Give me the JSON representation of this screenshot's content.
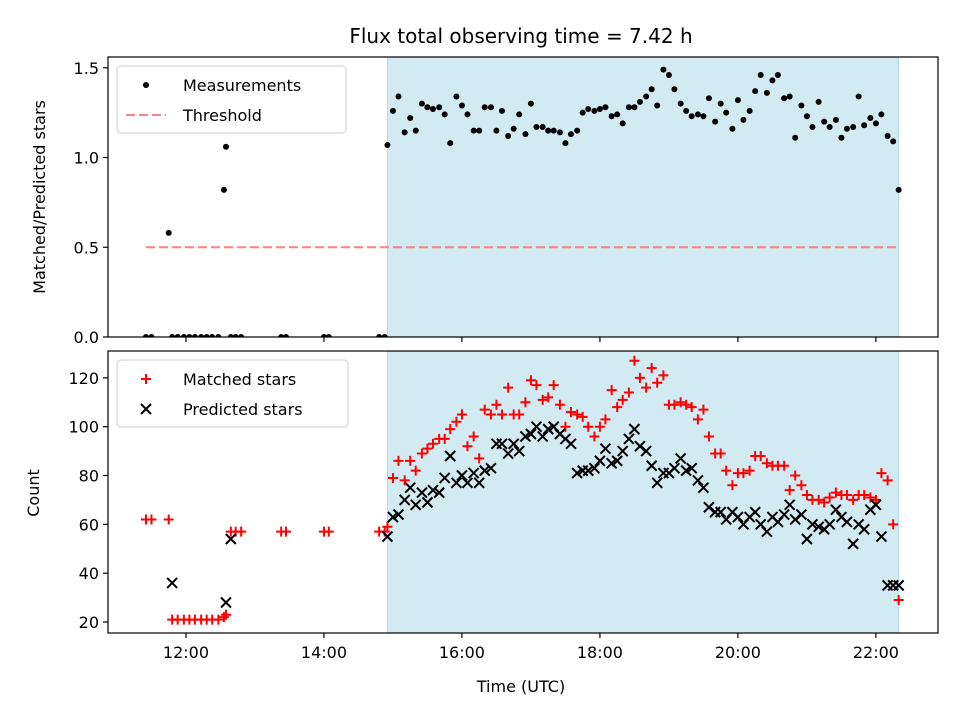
{
  "colors": {
    "observing_window": "#add8e6",
    "threshold": "#ff8080",
    "measurements": "#000000",
    "matched": "#ff0000",
    "predicted": "#000000"
  },
  "chart_data": [
    {
      "type": "scatter",
      "title": "Flux total observing time = 7.42 h",
      "ylabel": "Matched/Predicted stars",
      "xlabel": "",
      "xlim": [
        10.87,
        22.9
      ],
      "ylim": [
        0.0,
        1.56
      ],
      "y_ticks": [
        "0.0",
        "0.5",
        "1.0",
        "1.5"
      ],
      "shaded_window": [
        14.92,
        22.33
      ],
      "legend": {
        "placement": "upper-left",
        "entries": [
          "Measurements",
          "Threshold"
        ]
      },
      "series": [
        {
          "name": "Measurements",
          "marker": "dot",
          "x": [
            11.42,
            11.5,
            11.75,
            11.8,
            11.88,
            11.97,
            12.05,
            12.13,
            12.22,
            12.3,
            12.38,
            12.47,
            12.55,
            12.58,
            12.65,
            12.72,
            12.8,
            13.38,
            13.45,
            14.0,
            14.07,
            14.8,
            14.88,
            14.92,
            15.0,
            15.08,
            15.17,
            15.25,
            15.33,
            15.42,
            15.5,
            15.58,
            15.67,
            15.75,
            15.83,
            15.92,
            16.0,
            16.08,
            16.17,
            16.25,
            16.33,
            16.42,
            16.5,
            16.58,
            16.67,
            16.75,
            16.83,
            16.92,
            17.0,
            17.08,
            17.17,
            17.25,
            17.33,
            17.42,
            17.5,
            17.58,
            17.67,
            17.75,
            17.83,
            17.92,
            18.0,
            18.08,
            18.17,
            18.25,
            18.33,
            18.42,
            18.5,
            18.58,
            18.67,
            18.75,
            18.83,
            18.92,
            19.0,
            19.08,
            19.17,
            19.25,
            19.33,
            19.42,
            19.5,
            19.58,
            19.67,
            19.75,
            19.83,
            19.92,
            20.0,
            20.08,
            20.17,
            20.25,
            20.33,
            20.42,
            20.5,
            20.58,
            20.67,
            20.75,
            20.83,
            20.92,
            21.0,
            21.08,
            21.17,
            21.25,
            21.33,
            21.42,
            21.5,
            21.58,
            21.67,
            21.75,
            21.83,
            21.92,
            22.0,
            22.08,
            22.17,
            22.25,
            22.33
          ],
          "y": [
            0.0,
            0.0,
            0.58,
            0.0,
            0.0,
            0.0,
            0.0,
            0.0,
            0.0,
            0.0,
            0.0,
            0.0,
            0.82,
            1.06,
            0.0,
            0.0,
            0.0,
            0.0,
            0.0,
            0.0,
            0.0,
            0.0,
            0.0,
            1.07,
            1.26,
            1.34,
            1.14,
            1.22,
            1.15,
            1.3,
            1.28,
            1.27,
            1.28,
            1.24,
            1.08,
            1.34,
            1.29,
            1.24,
            1.15,
            1.15,
            1.28,
            1.28,
            1.15,
            1.26,
            1.12,
            1.16,
            1.24,
            1.13,
            1.3,
            1.17,
            1.17,
            1.15,
            1.15,
            1.14,
            1.08,
            1.13,
            1.15,
            1.25,
            1.27,
            1.26,
            1.27,
            1.28,
            1.23,
            1.24,
            1.19,
            1.28,
            1.28,
            1.31,
            1.34,
            1.38,
            1.29,
            1.49,
            1.46,
            1.38,
            1.3,
            1.26,
            1.23,
            1.24,
            1.23,
            1.33,
            1.2,
            1.3,
            1.25,
            1.16,
            1.32,
            1.21,
            1.26,
            1.37,
            1.46,
            1.36,
            1.43,
            1.46,
            1.33,
            1.34,
            1.11,
            1.29,
            1.23,
            1.17,
            1.31,
            1.2,
            1.17,
            1.21,
            1.11,
            1.16,
            1.17,
            1.34,
            1.18,
            1.22,
            1.19,
            1.24,
            1.12,
            1.09,
            0.82
          ]
        },
        {
          "name": "Threshold",
          "marker": "dashed-line",
          "x": [
            11.42,
            22.33
          ],
          "y": [
            0.5,
            0.5
          ]
        }
      ]
    },
    {
      "type": "scatter",
      "title": "",
      "ylabel": "Count",
      "xlabel": "Time (UTC)",
      "xlim": [
        10.87,
        22.9
      ],
      "ylim": [
        15.5,
        131
      ],
      "x_ticks": [
        {
          "value": 12,
          "label": "12:00"
        },
        {
          "value": 14,
          "label": "14:00"
        },
        {
          "value": 16,
          "label": "16:00"
        },
        {
          "value": 18,
          "label": "18:00"
        },
        {
          "value": 20,
          "label": "20:00"
        },
        {
          "value": 22,
          "label": "22:00"
        }
      ],
      "y_ticks": [
        "20",
        "40",
        "60",
        "80",
        "100",
        "120"
      ],
      "shaded_window": [
        14.92,
        22.33
      ],
      "legend": {
        "placement": "upper-left",
        "entries": [
          "Matched stars",
          "Predicted stars"
        ]
      },
      "series": [
        {
          "name": "Matched stars",
          "marker": "plus",
          "x": [
            11.42,
            11.5,
            11.75,
            11.8,
            11.88,
            11.97,
            12.05,
            12.13,
            12.22,
            12.3,
            12.38,
            12.47,
            12.55,
            12.58,
            12.65,
            12.72,
            12.8,
            13.38,
            13.45,
            14.0,
            14.07,
            14.8,
            14.88,
            14.92,
            15.0,
            15.08,
            15.17,
            15.25,
            15.33,
            15.42,
            15.5,
            15.58,
            15.67,
            15.75,
            15.83,
            15.92,
            16.0,
            16.08,
            16.17,
            16.25,
            16.33,
            16.42,
            16.5,
            16.58,
            16.67,
            16.75,
            16.83,
            16.92,
            17.0,
            17.08,
            17.17,
            17.25,
            17.33,
            17.42,
            17.5,
            17.58,
            17.67,
            17.75,
            17.83,
            17.92,
            18.0,
            18.08,
            18.17,
            18.25,
            18.33,
            18.42,
            18.5,
            18.58,
            18.67,
            18.75,
            18.83,
            18.92,
            19.0,
            19.08,
            19.17,
            19.25,
            19.33,
            19.42,
            19.5,
            19.58,
            19.67,
            19.75,
            19.83,
            19.92,
            20.0,
            20.08,
            20.17,
            20.25,
            20.33,
            20.42,
            20.5,
            20.58,
            20.67,
            20.75,
            20.83,
            20.92,
            21.0,
            21.08,
            21.17,
            21.25,
            21.33,
            21.42,
            21.5,
            21.58,
            21.67,
            21.75,
            21.83,
            21.92,
            22.0,
            22.08,
            22.17,
            22.25,
            22.33
          ],
          "y": [
            62,
            62,
            62,
            21,
            21,
            21,
            21,
            21,
            21,
            21,
            21,
            21,
            22,
            23,
            57,
            57,
            57,
            57,
            57,
            57,
            57,
            57,
            57,
            59,
            79,
            86,
            78,
            86,
            82,
            89,
            91,
            93,
            95,
            95,
            99,
            102,
            105,
            92,
            96,
            87,
            107,
            105,
            109,
            105,
            116,
            105,
            105,
            110,
            119,
            117,
            111,
            112,
            117,
            109,
            100,
            106,
            105,
            104,
            100,
            96,
            100,
            103,
            115,
            108,
            111,
            114,
            127,
            120,
            116,
            124,
            118,
            121,
            109,
            109,
            110,
            109,
            108,
            103,
            107,
            96,
            89,
            89,
            82,
            76,
            81,
            81,
            82,
            88,
            88,
            85,
            84,
            84,
            84,
            74,
            80,
            76,
            72,
            70,
            70,
            69,
            71,
            73,
            72,
            72,
            70,
            72,
            72,
            71,
            70,
            81,
            78,
            60,
            29
          ]
        },
        {
          "name": "Predicted stars",
          "marker": "x",
          "x": [
            11.8,
            12.58,
            12.65,
            14.92,
            15.0,
            15.08,
            15.17,
            15.25,
            15.33,
            15.42,
            15.5,
            15.58,
            15.67,
            15.75,
            15.83,
            15.92,
            16.0,
            16.08,
            16.17,
            16.25,
            16.33,
            16.42,
            16.5,
            16.58,
            16.67,
            16.75,
            16.83,
            16.92,
            17.0,
            17.08,
            17.17,
            17.25,
            17.33,
            17.42,
            17.5,
            17.58,
            17.67,
            17.75,
            17.83,
            17.92,
            18.0,
            18.08,
            18.17,
            18.25,
            18.33,
            18.42,
            18.5,
            18.58,
            18.67,
            18.75,
            18.83,
            18.92,
            19.0,
            19.08,
            19.17,
            19.25,
            19.33,
            19.42,
            19.5,
            19.58,
            19.67,
            19.75,
            19.83,
            19.92,
            20.0,
            20.08,
            20.17,
            20.25,
            20.33,
            20.42,
            20.5,
            20.58,
            20.67,
            20.75,
            20.83,
            20.92,
            21.0,
            21.08,
            21.17,
            21.25,
            21.33,
            21.42,
            21.5,
            21.58,
            21.67,
            21.75,
            21.83,
            21.92,
            22.0,
            22.08,
            22.17,
            22.25,
            22.33
          ],
          "y": [
            36,
            28,
            54,
            55,
            63,
            64,
            70,
            75,
            68,
            73,
            69,
            74,
            73,
            79,
            88,
            77,
            80,
            77,
            81,
            77,
            82,
            83,
            93,
            93,
            89,
            93,
            90,
            96,
            97,
            100,
            96,
            99,
            100,
            97,
            95,
            93,
            81,
            82,
            82,
            83,
            86,
            91,
            85,
            86,
            90,
            95,
            99,
            92,
            90,
            84,
            77,
            81,
            81,
            83,
            87,
            82,
            83,
            78,
            75,
            67,
            65,
            65,
            62,
            65,
            63,
            60,
            63,
            65,
            60,
            57,
            63,
            61,
            64,
            68,
            62,
            64,
            54,
            60,
            59,
            58,
            60,
            66,
            63,
            61,
            52,
            60,
            58,
            66,
            68,
            55,
            35,
            35,
            35
          ]
        }
      ]
    }
  ]
}
